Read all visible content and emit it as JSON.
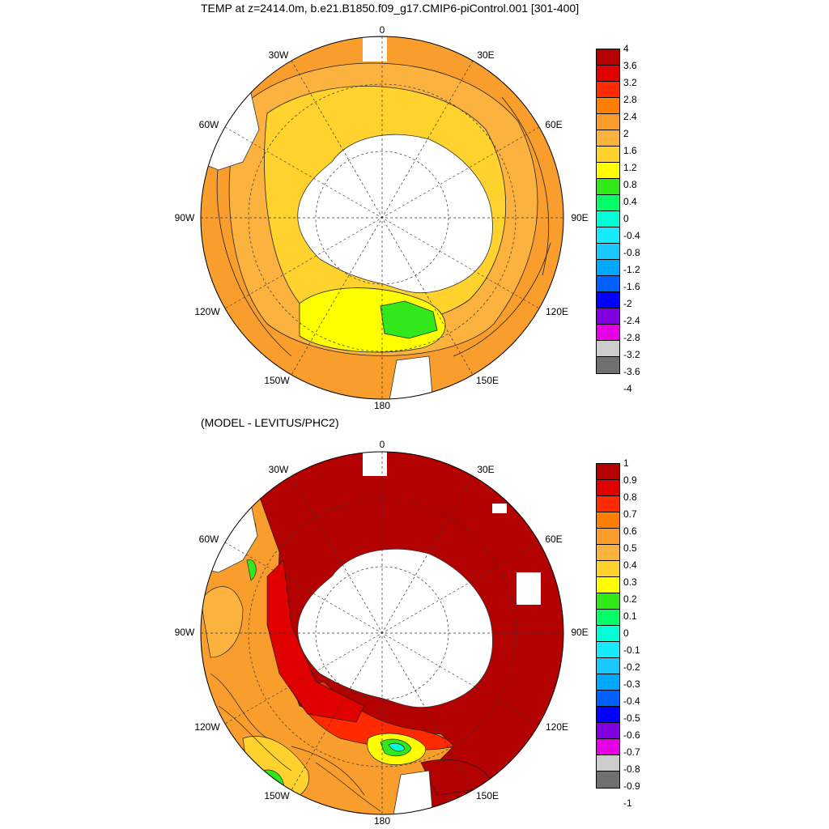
{
  "title": "TEMP at z=2414.0m, b.e21.B1850.f09_g17.CMIP6-piControl.001 [301-400]",
  "subtitle": "(MODEL - LEVITUS/PHC2)",
  "lon_labels": [
    "0",
    "30E",
    "60E",
    "90E",
    "120E",
    "150E",
    "180",
    "150W",
    "120W",
    "90W",
    "60W",
    "30W"
  ],
  "colorbar_top": {
    "labels": [
      "4",
      "3.6",
      "3.2",
      "2.8",
      "2.4",
      "2",
      "1.6",
      "1.2",
      "0.8",
      "0.4",
      "0",
      "-0.4",
      "-0.8",
      "-1.2",
      "-1.6",
      "-2",
      "-2.4",
      "-2.8",
      "-3.2",
      "-3.6",
      "-4"
    ],
    "colors": [
      "#b30000",
      "#e00000",
      "#ff2a00",
      "#ff8000",
      "#f99e2d",
      "#fbb23e",
      "#ffd22e",
      "#ffff00",
      "#33e81a",
      "#00ff66",
      "#00ffd5",
      "#1ae8ff",
      "#1ac8ff",
      "#00a8ff",
      "#0060ff",
      "#0000ff",
      "#8000e0",
      "#e600e6",
      "#cccccc",
      "#707070"
    ]
  },
  "colorbar_bottom": {
    "labels": [
      "1",
      "0.9",
      "0.8",
      "0.7",
      "0.6",
      "0.5",
      "0.4",
      "0.3",
      "0.2",
      "0.1",
      "0",
      "-0.1",
      "-0.2",
      "-0.3",
      "-0.4",
      "-0.5",
      "-0.6",
      "-0.7",
      "-0.8",
      "-0.9",
      "-1"
    ],
    "colors": [
      "#b30000",
      "#e00000",
      "#ff2a00",
      "#ff8000",
      "#f99e2d",
      "#fbb23e",
      "#ffd22e",
      "#ffff00",
      "#33e81a",
      "#00ff66",
      "#00ffd5",
      "#1ae8ff",
      "#1ac8ff",
      "#00a8ff",
      "#0060ff",
      "#0000ff",
      "#8000e0",
      "#e600e6",
      "#cccccc",
      "#707070"
    ]
  }
}
